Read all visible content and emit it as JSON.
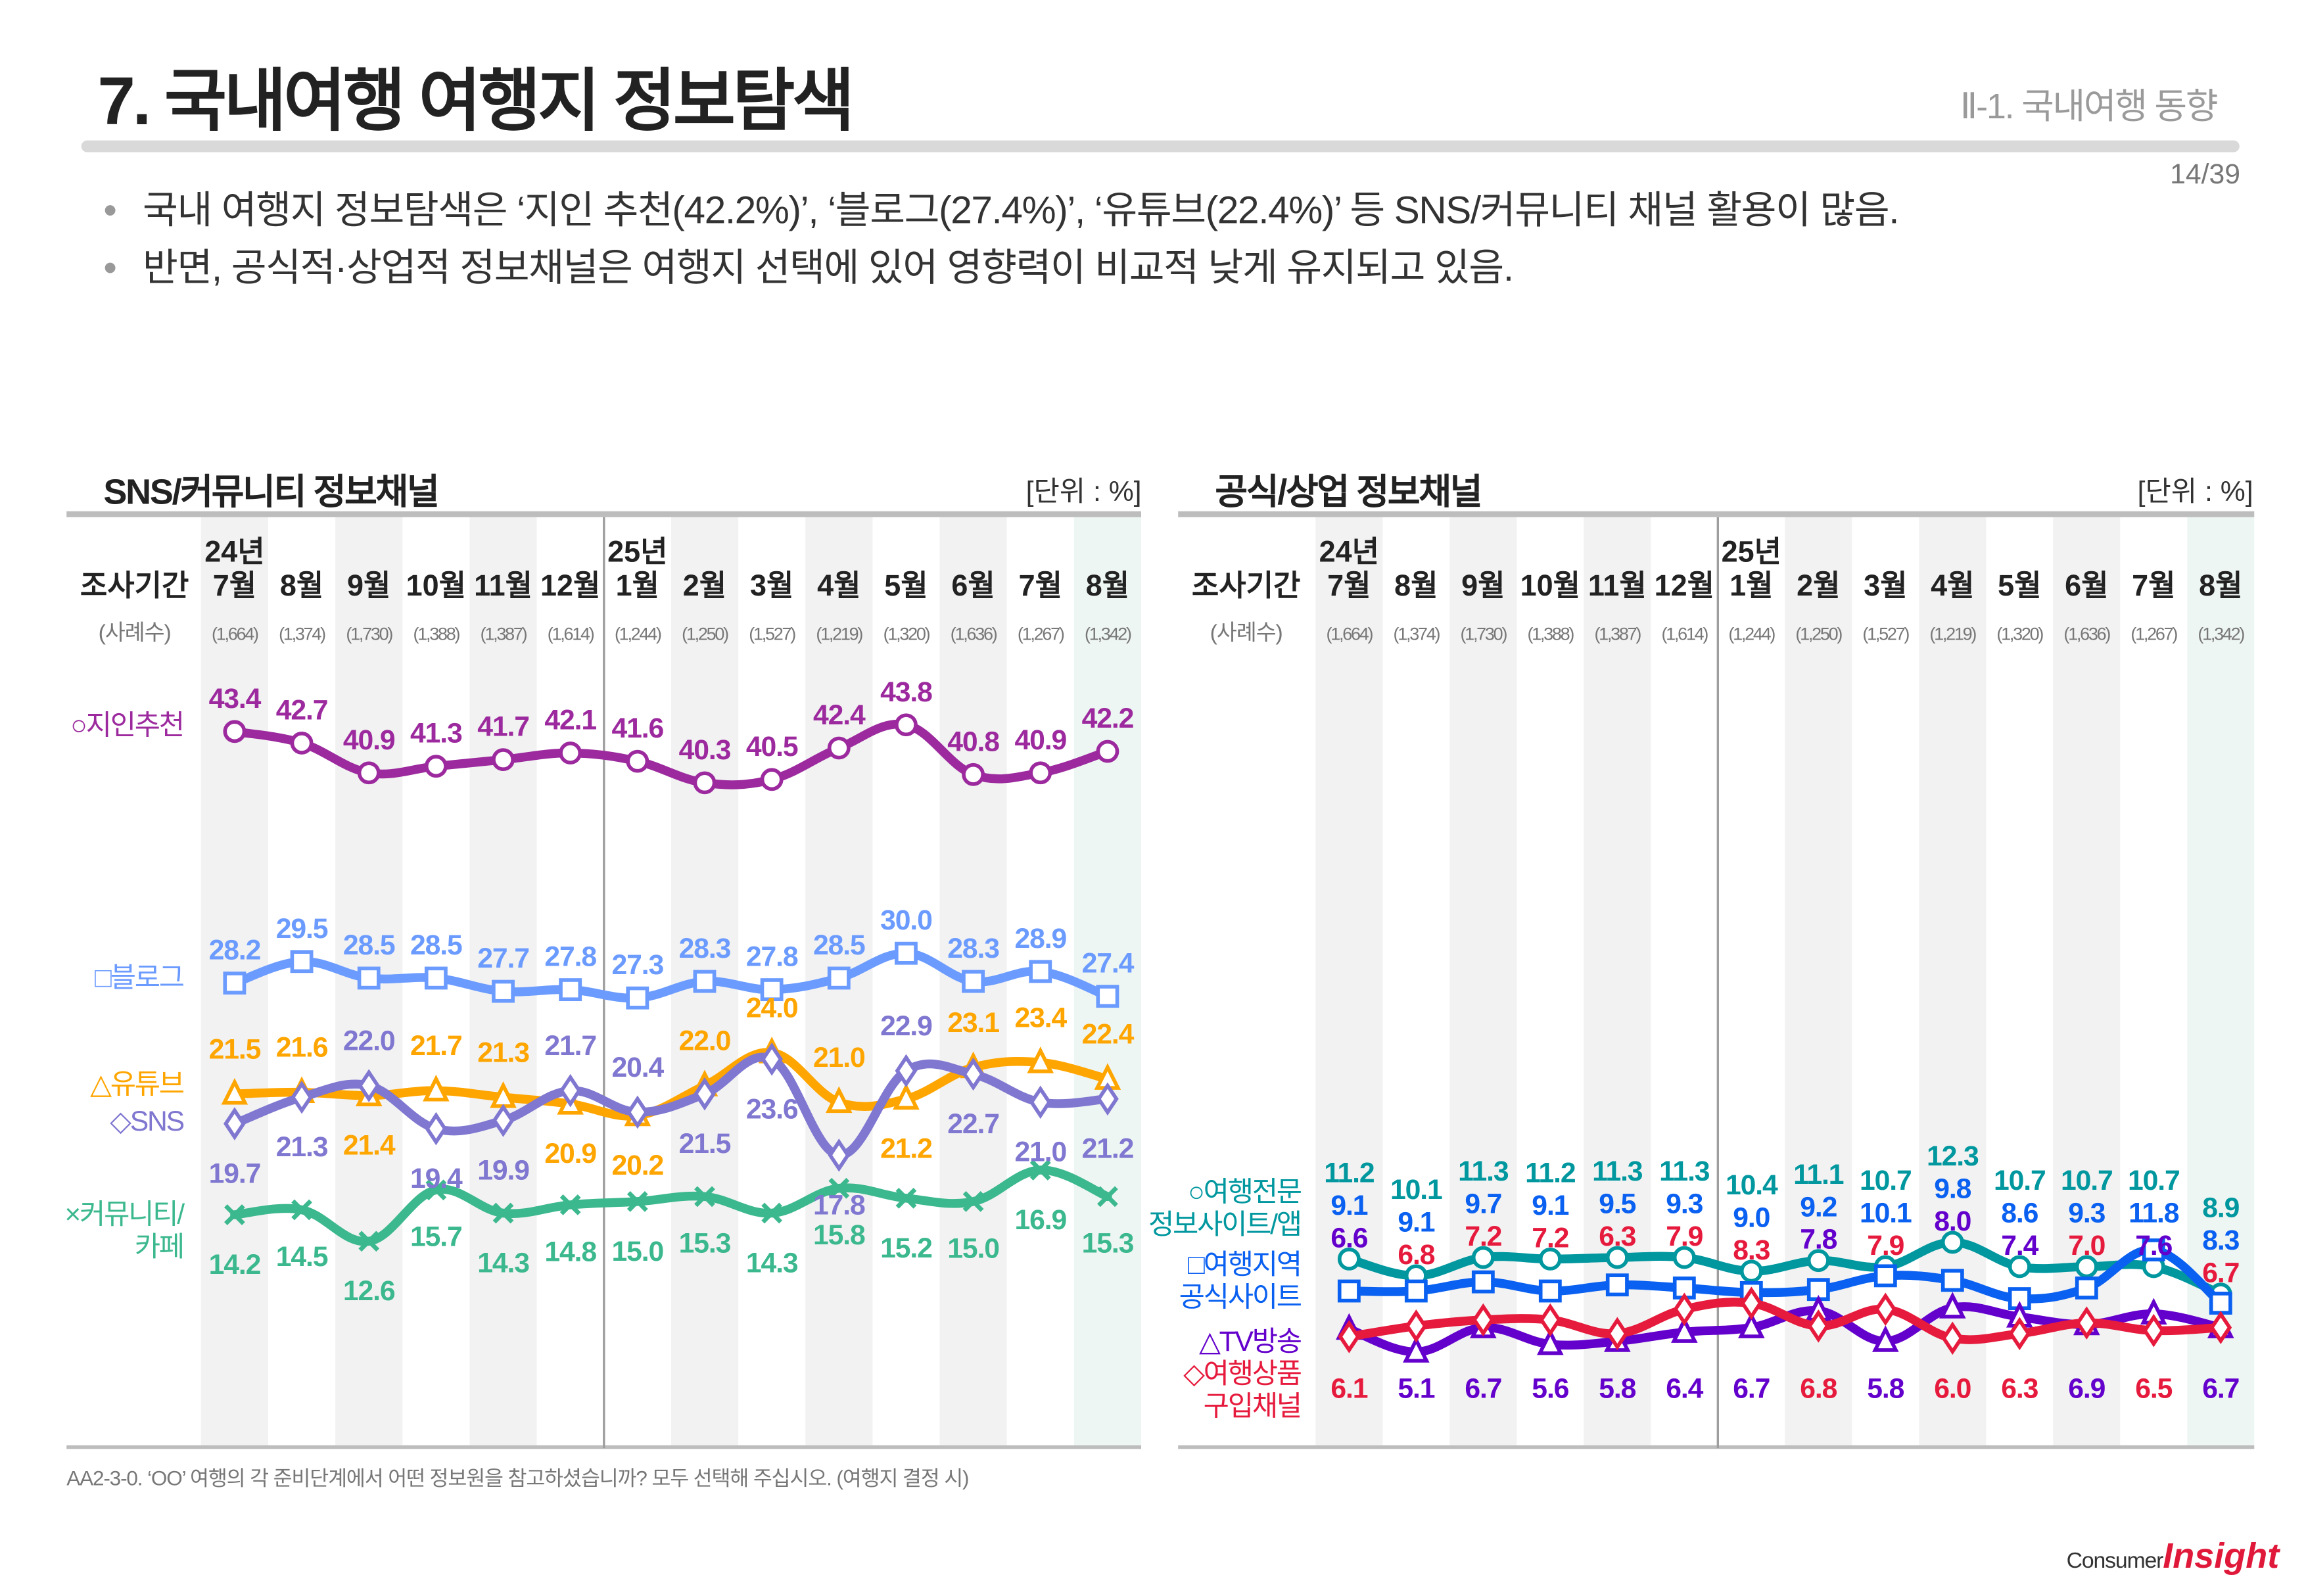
{
  "header": {
    "title": "7. 국내여행 여행지 정보탐색",
    "section": "Ⅱ-1. 국내여행 동향",
    "page": "14/39"
  },
  "bullets": [
    "국내 여행지 정보탐색은 ‘지인 추천(42.2%)’, ‘블로그(27.4%)’, ‘유튜브(22.4%)’ 등 SNS/커뮤니티 채널 활용이 많음.",
    "반면, 공식적·상업적 정보채널은 여행지 선택에 있어 영향력이 비교적 낮게 유지되고 있음."
  ],
  "bullet_glyph": "•",
  "footer": "AA2-3-0. ‘OO’ 여행의 각 준비단계에서 어떤 정보원을 참고하셨습니까? 모두 선택해 주십시오. (여행지 결정 시)",
  "logo": {
    "text1": "Consumer",
    "text2": "Insight"
  },
  "chart_data": [
    {
      "type": "line",
      "title": "SNS/커뮤니티 정보채널",
      "unit": "[단위 : %]",
      "period_label": "조사기간",
      "sample_label": "(사례수)",
      "years": [
        {
          "index": 0,
          "label": "24년"
        },
        {
          "index": 6,
          "label": "25년"
        }
      ],
      "categories": [
        "7월",
        "8월",
        "9월",
        "10월",
        "11월",
        "12월",
        "1월",
        "2월",
        "3월",
        "4월",
        "5월",
        "6월",
        "7월",
        "8월"
      ],
      "sample_sizes": [
        "(1,664)",
        "(1,374)",
        "(1,730)",
        "(1,388)",
        "(1,387)",
        "(1,614)",
        "(1,244)",
        "(1,250)",
        "(1,527)",
        "(1,219)",
        "(1,320)",
        "(1,636)",
        "(1,267)",
        "(1,342)"
      ],
      "series": [
        {
          "name": "○지인추천",
          "marker": "circle",
          "color": "#9c2a9e",
          "values": [
            43.4,
            42.7,
            40.9,
            41.3,
            41.7,
            42.1,
            41.6,
            40.3,
            40.5,
            42.4,
            43.8,
            40.8,
            40.9,
            42.2
          ]
        },
        {
          "name": "□블로그",
          "marker": "square",
          "color": "#6b9bff",
          "values": [
            28.2,
            29.5,
            28.5,
            28.5,
            27.7,
            27.8,
            27.3,
            28.3,
            27.8,
            28.5,
            30.0,
            28.3,
            28.9,
            27.4
          ]
        },
        {
          "name": "△유튜브",
          "marker": "triangle",
          "color": "#ffa500",
          "values": [
            21.5,
            21.6,
            21.4,
            21.7,
            21.3,
            20.9,
            20.2,
            22.0,
            24.0,
            21.0,
            21.2,
            23.1,
            23.4,
            22.4
          ]
        },
        {
          "name": "◇SNS",
          "marker": "diamond",
          "color": "#7f77d0",
          "values": [
            19.7,
            21.3,
            22.0,
            19.4,
            19.9,
            21.7,
            20.4,
            21.5,
            23.6,
            17.8,
            22.9,
            22.7,
            21.0,
            21.2
          ]
        },
        {
          "name": "×커뮤니티/\n카페",
          "marker": "x",
          "color": "#3cb88e",
          "values": [
            14.2,
            14.5,
            12.6,
            15.7,
            14.3,
            14.8,
            15.0,
            15.3,
            14.3,
            15.8,
            15.2,
            15.0,
            16.9,
            15.3
          ]
        }
      ]
    },
    {
      "type": "line",
      "title": "공식/상업 정보채널",
      "unit": "[단위 : %]",
      "period_label": "조사기간",
      "sample_label": "(사례수)",
      "years": [
        {
          "index": 0,
          "label": "24년"
        },
        {
          "index": 6,
          "label": "25년"
        }
      ],
      "categories": [
        "7월",
        "8월",
        "9월",
        "10월",
        "11월",
        "12월",
        "1월",
        "2월",
        "3월",
        "4월",
        "5월",
        "6월",
        "7월",
        "8월"
      ],
      "sample_sizes": [
        "(1,664)",
        "(1,374)",
        "(1,730)",
        "(1,388)",
        "(1,387)",
        "(1,614)",
        "(1,244)",
        "(1,250)",
        "(1,527)",
        "(1,219)",
        "(1,320)",
        "(1,636)",
        "(1,267)",
        "(1,342)"
      ],
      "series": [
        {
          "name": "○여행전문\n정보사이트/앱",
          "marker": "circle",
          "color": "#00979f",
          "values": [
            11.2,
            10.1,
            11.3,
            11.2,
            11.3,
            11.3,
            10.4,
            11.1,
            10.7,
            12.3,
            10.7,
            10.7,
            10.7,
            8.9
          ]
        },
        {
          "name": "□여행지역\n공식사이트",
          "marker": "square",
          "color": "#0a60f0",
          "values": [
            9.1,
            9.1,
            9.7,
            9.1,
            9.5,
            9.3,
            9.0,
            9.2,
            10.1,
            9.8,
            8.6,
            9.3,
            11.8,
            8.3
          ]
        },
        {
          "name": "△TV방송",
          "marker": "triangle",
          "color": "#6400cc",
          "values": [
            6.6,
            5.1,
            6.7,
            5.6,
            5.8,
            6.4,
            6.7,
            7.8,
            5.8,
            8.0,
            7.4,
            6.9,
            7.6,
            6.7
          ]
        },
        {
          "name": "◇여행상품\n구입채널",
          "marker": "diamond",
          "color": "#e61a3c",
          "values": [
            6.1,
            6.8,
            7.2,
            7.2,
            6.3,
            7.9,
            8.3,
            6.8,
            7.9,
            6.0,
            6.3,
            7.0,
            6.5,
            6.7
          ]
        }
      ]
    }
  ]
}
